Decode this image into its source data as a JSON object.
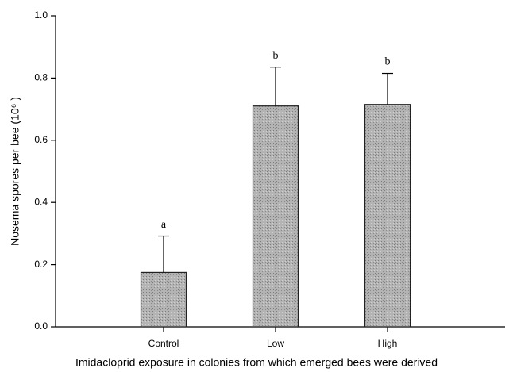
{
  "chart_data": {
    "type": "bar",
    "xlabel": "Imidacloprid exposure in colonies from which emerged bees were derived",
    "ylabel": "Nosema spores per bee (10⁶ )",
    "categories": [
      "Control",
      "Low",
      "High"
    ],
    "values": [
      0.175,
      0.71,
      0.715
    ],
    "errors": [
      0.117,
      0.125,
      0.1
    ],
    "annotations": [
      "a",
      "b",
      "b"
    ],
    "color": "#ababab",
    "ylim": [
      0,
      1
    ],
    "yticks": [
      {
        "value": 0,
        "label": "0.0"
      },
      0.2,
      0.4,
      0.6,
      0.8,
      {
        "value": 1,
        "label": "1.0"
      }
    ]
  }
}
